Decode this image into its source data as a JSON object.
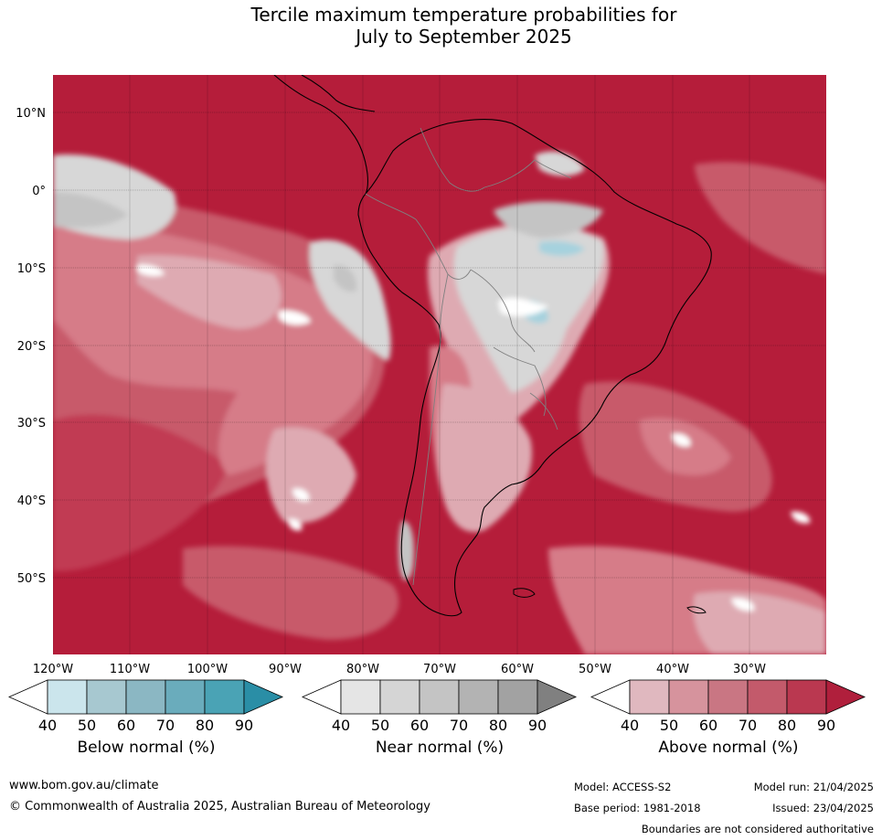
{
  "title": {
    "line1": "Tercile maximum temperature probabilities for",
    "line2": "July to September 2025"
  },
  "map": {
    "lat_labels": [
      "10°N",
      "0°",
      "10°S",
      "20°S",
      "30°S",
      "40°S",
      "50°S"
    ],
    "lon_labels": [
      "120°W",
      "110°W",
      "100°W",
      "90°W",
      "80°W",
      "70°W",
      "60°W",
      "50°W",
      "40°W",
      "30°W"
    ],
    "colors": {
      "ocean_dark": "#b51d3a",
      "above_80": "#c13a53",
      "above_70": "#c85a6b",
      "above_60": "#d67c88",
      "above_50": "#deaab2",
      "near_40": "#d7d7d7",
      "near_50": "#c4c4c4",
      "below_50": "#a6d2de",
      "white": "#ffffff",
      "coast": "#000000",
      "border": "#808080"
    }
  },
  "colorbars": [
    {
      "title": "Below normal (%)",
      "ticks": [
        "40",
        "50",
        "60",
        "70",
        "80",
        "90"
      ],
      "colors": [
        "#ffffff",
        "#cbe5ec",
        "#a7c8d0",
        "#8bb7c3",
        "#6aacbc",
        "#4aa3b5",
        "#2a8ea6"
      ]
    },
    {
      "title": "Near normal (%)",
      "ticks": [
        "40",
        "50",
        "60",
        "70",
        "80",
        "90"
      ],
      "colors": [
        "#ffffff",
        "#e5e5e5",
        "#d5d5d5",
        "#c4c4c4",
        "#b3b3b3",
        "#a2a2a2",
        "#808080"
      ]
    },
    {
      "title": "Above normal (%)",
      "ticks": [
        "40",
        "50",
        "60",
        "70",
        "80",
        "90"
      ],
      "colors": [
        "#ffffff",
        "#e0b8bf",
        "#d6939d",
        "#c97683",
        "#c35a6b",
        "#ba3850",
        "#b01f3c"
      ]
    }
  ],
  "footer": {
    "website": "www.bom.gov.au/climate",
    "copyright": "© Commonwealth of Australia 2025, Australian Bureau of Meteorology",
    "model": "Model: ACCESS-S2",
    "base_period": "Base period: 1981-2018",
    "model_run": "Model run: 21/04/2025",
    "issued": "Issued: 23/04/2025",
    "disclaimer": "Boundaries are not considered authoritative"
  }
}
